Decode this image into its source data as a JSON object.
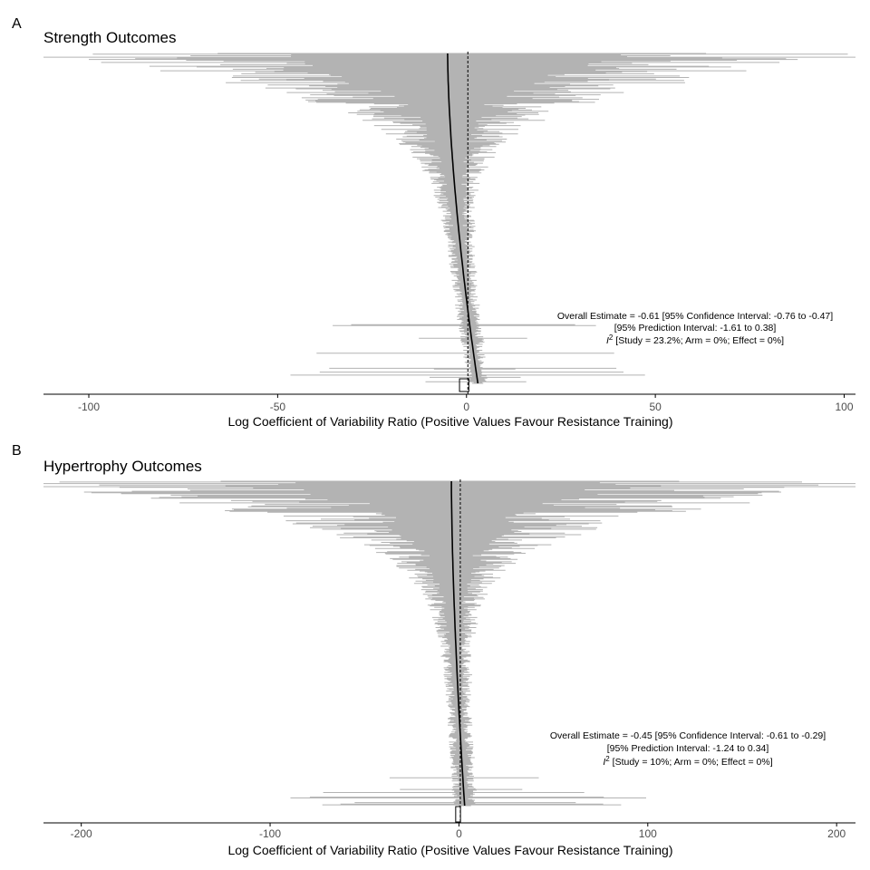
{
  "chart_data": [
    {
      "type": "forest",
      "panel_label": "A",
      "title": "Strength Outcomes",
      "xlabel": "Log Coefficient of Variability Ratio (Positive Values Favour Resistance Training)",
      "ylabel": "",
      "xlim": [
        -112,
        103
      ],
      "xticks": [
        -100,
        -50,
        0,
        50,
        100
      ],
      "xtick_labels": [
        "-100",
        "-50",
        "0",
        "50",
        "100"
      ],
      "reference_line": 0,
      "n_effects_approx": 440,
      "overall_estimate": -0.61,
      "confidence_interval": [
        -0.76,
        -0.47
      ],
      "prediction_interval": [
        -1.61,
        0.38
      ],
      "i2": {
        "study": 23.2,
        "arm": 0,
        "effect": 0
      },
      "annotation": {
        "line1": "Overall Estimate = -0.61 [95% Confidence Interval: -0.76 to -0.47]",
        "line2": "[95% Prediction Interval: -1.61 to 0.38]",
        "line3": " [Study = 23.2%; Arm = 0%; Effect = 0%]"
      },
      "estimate_curve": {
        "start": -5,
        "end": 3
      },
      "colors": {
        "interval": "#b3b3b3",
        "estimate": "#000000"
      }
    },
    {
      "type": "forest",
      "panel_label": "B",
      "title": "Hypertrophy Outcomes",
      "xlabel": "Log Coefficient of Variability Ratio (Positive Values Favour Resistance Training)",
      "ylabel": "",
      "xlim": [
        -220,
        210
      ],
      "xticks": [
        -200,
        -100,
        0,
        100,
        200
      ],
      "xtick_labels": [
        "-200",
        "-100",
        "0",
        "100",
        "200"
      ],
      "reference_line": 0,
      "n_effects_approx": 420,
      "overall_estimate": -0.45,
      "confidence_interval": [
        -0.61,
        -0.29
      ],
      "prediction_interval": [
        -1.24,
        0.34
      ],
      "i2": {
        "study": 10,
        "arm": 0,
        "effect": 0
      },
      "annotation": {
        "line1": "Overall Estimate = -0.45 [95% Confidence Interval: -0.61 to -0.29]",
        "line2": "[95% Prediction Interval: -1.24 to 0.34]",
        "line3": " [Study = 10%; Arm = 0%; Effect = 0%]"
      },
      "estimate_curve": {
        "start": -4,
        "end": 3
      },
      "colors": {
        "interval": "#b3b3b3",
        "estimate": "#000000"
      }
    }
  ]
}
